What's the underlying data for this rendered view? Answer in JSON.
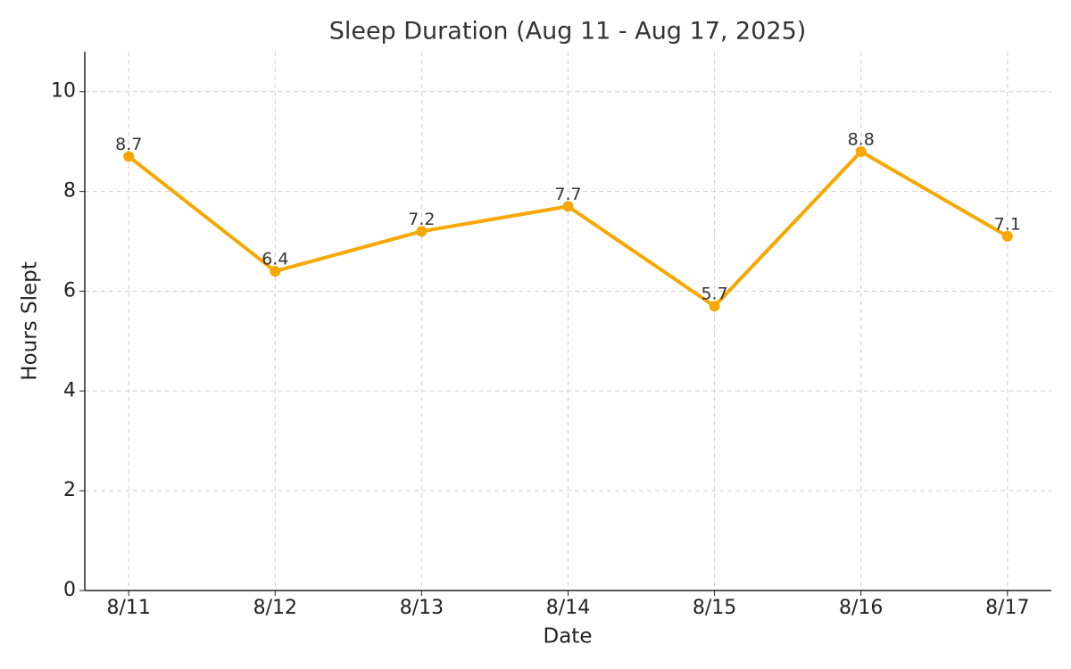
{
  "chart_data": {
    "type": "line",
    "title": "Sleep Duration (Aug 11 - Aug 17, 2025)",
    "x_label": "Date",
    "y_label": "Hours Slept",
    "categories": [
      "8/11",
      "8/12",
      "8/13",
      "8/14",
      "8/15",
      "8/16",
      "8/17"
    ],
    "values": [
      8.7,
      6.4,
      7.2,
      7.7,
      5.7,
      8.8,
      7.1
    ],
    "color": "#f7a800",
    "ylim": [
      0,
      10.8
    ],
    "yticks": [
      0,
      2,
      4,
      6,
      8,
      10
    ],
    "grid": true
  }
}
